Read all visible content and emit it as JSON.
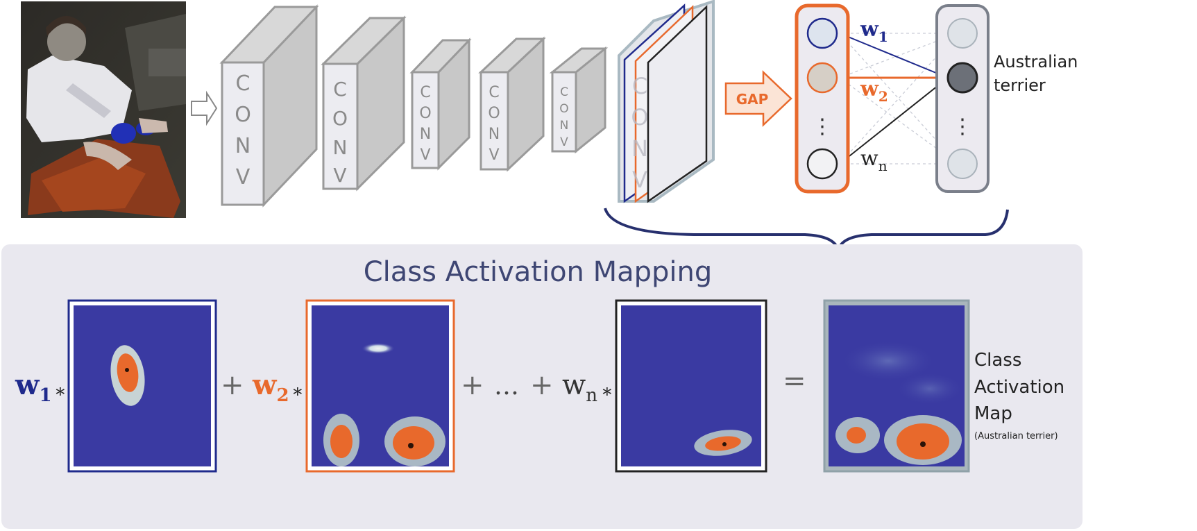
{
  "input_image": {
    "alt": "Input photo",
    "description_hidden": true
  },
  "pipeline": {
    "conv_layers": [
      {
        "label": "C O N V"
      },
      {
        "label": "C O N V"
      },
      {
        "label": "C O N V"
      },
      {
        "label": "C O N V"
      },
      {
        "label": "C O N V"
      }
    ],
    "last_conv_label": "C O N V",
    "gap_label": "GAP"
  },
  "fc": {
    "weights": [
      {
        "sym": "w",
        "sub": "1",
        "color": "#1f2a8c"
      },
      {
        "sym": "w",
        "sub": "2",
        "color": "#e8692c"
      },
      {
        "sym": "w",
        "sub": "n",
        "color": "#222222"
      }
    ],
    "ellipsis": "⋮",
    "class_label_line1": "Australian",
    "class_label_line2": "terrier"
  },
  "cam": {
    "title": "Class Activation Mapping",
    "terms": [
      {
        "sym": "w",
        "sub": "1",
        "op": "∗",
        "color": "#1f2a8c"
      },
      {
        "sym": "w",
        "sub": "2",
        "op": "∗",
        "color": "#e8692c"
      },
      {
        "sym": "w",
        "sub": "n",
        "op": "∗",
        "color": "#333333"
      }
    ],
    "plus1": "+",
    "plus2": "+",
    "ellipsis": "…",
    "plus3": "+",
    "equals": "=",
    "result_label_lines": [
      "Class",
      "Activation",
      "Map"
    ],
    "result_sublabel": "(Australian terrier)"
  },
  "colors": {
    "blue": "#1f2a8c",
    "orange": "#e8692c",
    "heat_bg": "#3a3aa2",
    "panel_bg": "#e9e8ef",
    "conv_front": "#ececf1",
    "conv_side": "#c8c8c8",
    "conv_stroke": "#9a9a9a",
    "title": "#3e4673"
  }
}
